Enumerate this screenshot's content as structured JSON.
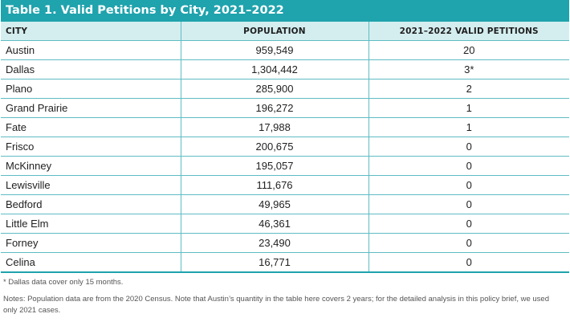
{
  "title": "Table 1. Valid Petitions by City, 2021–2022",
  "columns": [
    "CITY",
    "POPULATION",
    "2021–2022 VALID PETITIONS"
  ],
  "rows": [
    {
      "city": "Austin",
      "population": "959,549",
      "petitions": "20"
    },
    {
      "city": "Dallas",
      "population": "1,304,442",
      "petitions": "3*"
    },
    {
      "city": "Plano",
      "population": "285,900",
      "petitions": "2"
    },
    {
      "city": "Grand Prairie",
      "population": "196,272",
      "petitions": "1"
    },
    {
      "city": "Fate",
      "population": "17,988",
      "petitions": "1"
    },
    {
      "city": "Frisco",
      "population": "200,675",
      "petitions": "0"
    },
    {
      "city": "McKinney",
      "population": "195,057",
      "petitions": "0"
    },
    {
      "city": "Lewisville",
      "population": "111,676",
      "petitions": "0"
    },
    {
      "city": "Bedford",
      "population": "49,965",
      "petitions": "0"
    },
    {
      "city": "Little Elm",
      "population": "46,361",
      "petitions": "0"
    },
    {
      "city": "Forney",
      "population": "23,490",
      "petitions": "0"
    },
    {
      "city": "Celina",
      "population": "16,771",
      "petitions": "0"
    }
  ],
  "footnote": "* Dallas data cover only 15 months.",
  "notes": "Notes: Population data are from the 2020 Census. Note that Austin’s quantity in the table here covers 2 years; for the detailed analysis in this policy brief, we used only 2021 cases.",
  "colors": {
    "title_bar": "#1fa3ad",
    "header_bg": "#d4eef0",
    "grid": "#5fbcc4"
  }
}
